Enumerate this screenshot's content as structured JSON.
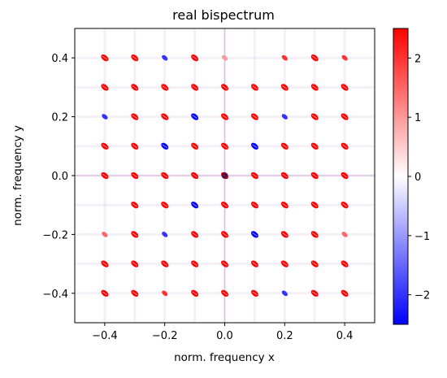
{
  "chart_data": {
    "type": "heatmap",
    "title": "real bispectrum",
    "xlabel": "norm. frequency x",
    "ylabel": "norm. frequency y",
    "xlim": [
      -0.5,
      0.5
    ],
    "ylim": [
      -0.5,
      0.5
    ],
    "xticks": [
      -0.4,
      -0.2,
      0.0,
      0.2,
      0.4
    ],
    "xtick_labels": [
      "−0.4",
      "−0.2",
      "0.0",
      "0.2",
      "0.4"
    ],
    "yticks": [
      0.4,
      0.2,
      0.0,
      -0.2,
      -0.4
    ],
    "ytick_labels": [
      "0.4",
      "0.2",
      "0.0",
      "−0.2",
      "−0.4"
    ],
    "grid": false,
    "colormap": "bwr",
    "colorbar": {
      "range": [
        -2.5,
        2.5
      ],
      "ticks": [
        2,
        1,
        0,
        -1,
        -2
      ],
      "tick_labels": [
        "2",
        "1",
        "0",
        "−1",
        "−2"
      ],
      "colors": {
        "low": "#0000ff",
        "mid": "#ffffff",
        "high": "#ff0000"
      }
    },
    "grid_coords": [
      -0.4,
      -0.3,
      -0.2,
      -0.1,
      0.0,
      0.1,
      0.2,
      0.3,
      0.4
    ],
    "peaks": [
      {
        "y": 0.4,
        "values": [
          2.5,
          2.5,
          -2.0,
          2.5,
          1.0,
          0.0,
          2.0,
          2.5,
          2.0
        ]
      },
      {
        "y": 0.3,
        "values": [
          2.5,
          2.5,
          2.5,
          2.5,
          2.5,
          2.5,
          2.5,
          2.5,
          2.5
        ]
      },
      {
        "y": 0.2,
        "values": [
          -2.0,
          2.5,
          2.5,
          -2.5,
          2.5,
          2.5,
          -2.0,
          2.5,
          2.5
        ]
      },
      {
        "y": 0.1,
        "values": [
          2.5,
          2.5,
          -2.5,
          2.5,
          2.5,
          -2.5,
          2.5,
          2.5,
          2.5
        ]
      },
      {
        "y": 0.0,
        "values": [
          2.5,
          2.5,
          2.5,
          2.5,
          2.5,
          2.5,
          2.5,
          2.5,
          2.5
        ]
      },
      {
        "y": -0.1,
        "values": [
          0.0,
          2.5,
          2.5,
          -2.5,
          2.5,
          2.5,
          2.5,
          2.5,
          2.5
        ]
      },
      {
        "y": -0.2,
        "values": [
          1.5,
          2.5,
          -2.0,
          2.5,
          2.5,
          -2.5,
          2.5,
          2.5,
          1.5
        ]
      },
      {
        "y": -0.3,
        "values": [
          2.5,
          2.5,
          2.5,
          2.5,
          2.5,
          2.5,
          2.5,
          2.5,
          2.5
        ]
      },
      {
        "y": -0.4,
        "values": [
          2.5,
          2.5,
          2.0,
          2.5,
          2.5,
          2.5,
          -2.0,
          2.5,
          2.5
        ]
      }
    ]
  }
}
